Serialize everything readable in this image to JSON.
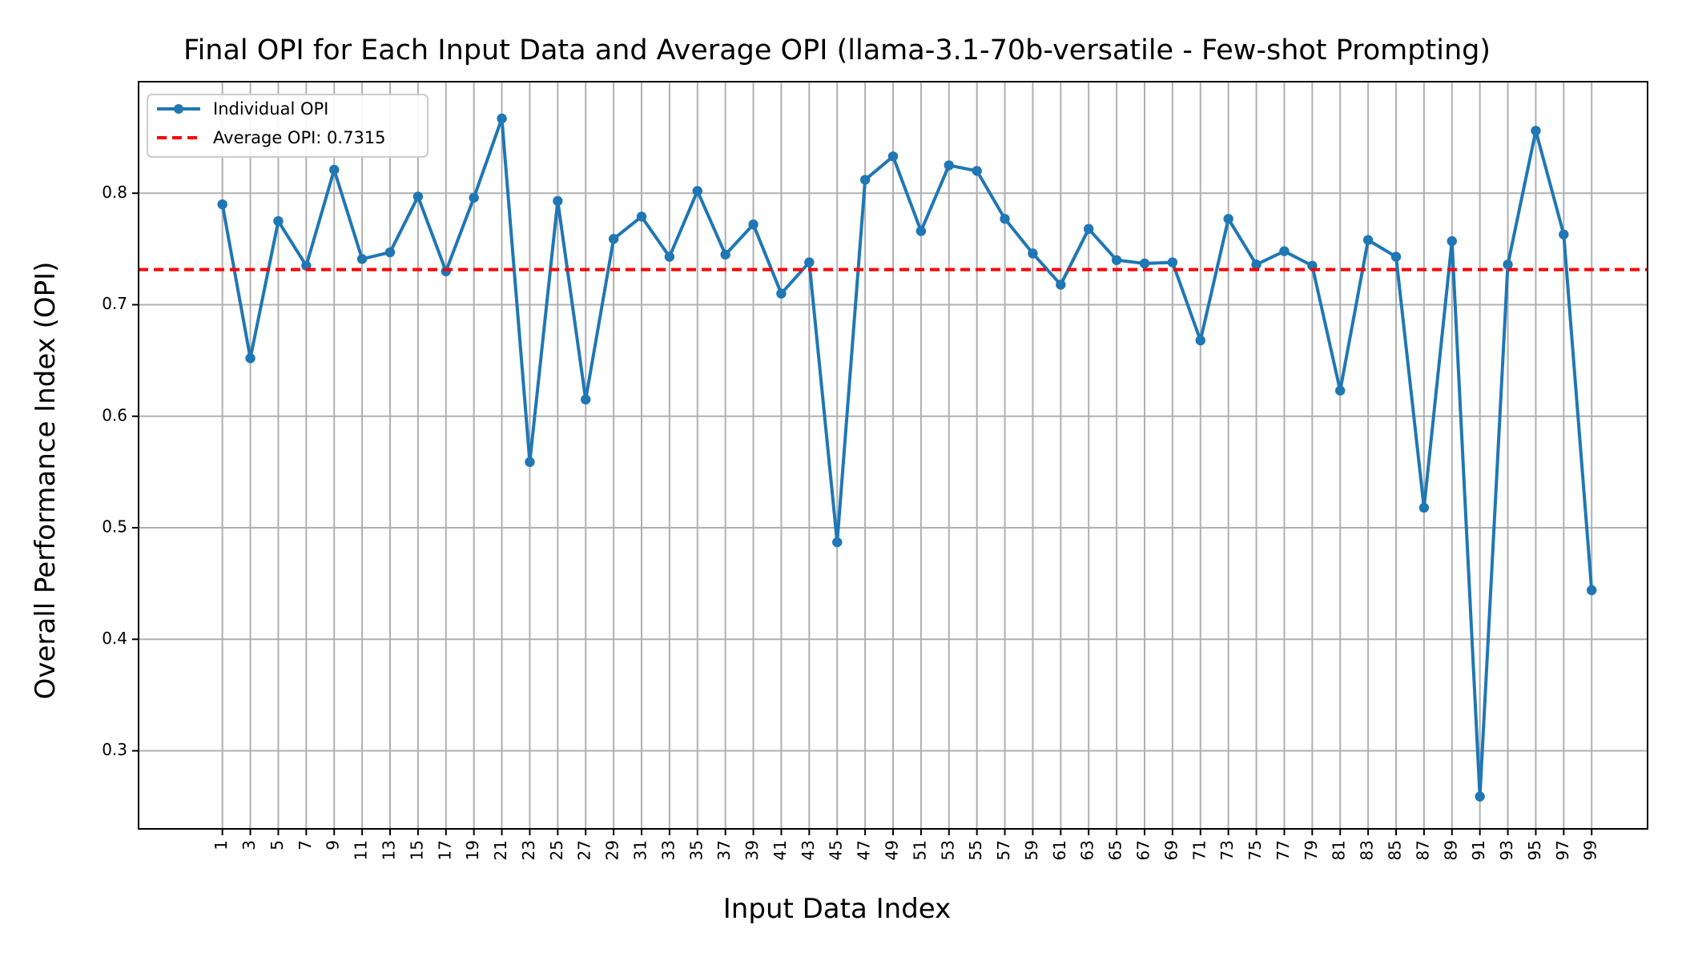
{
  "chart_data": {
    "type": "line",
    "title": "Final OPI for Each Input Data and Average OPI (llama-3.1-70b-versatile - Few-shot Prompting)",
    "xlabel": "Input Data Index",
    "ylabel": "Overall Performance Index (OPI)",
    "x": [
      1,
      3,
      5,
      7,
      9,
      11,
      13,
      15,
      17,
      19,
      21,
      23,
      25,
      27,
      29,
      31,
      33,
      35,
      37,
      39,
      41,
      43,
      45,
      47,
      49,
      51,
      53,
      55,
      57,
      59,
      61,
      63,
      65,
      67,
      69,
      71,
      73,
      75,
      77,
      79,
      81,
      83,
      85,
      87,
      89,
      91,
      93,
      95,
      97,
      99
    ],
    "x_ticks": [
      "1",
      "3",
      "5",
      "7",
      "9",
      "11",
      "13",
      "15",
      "17",
      "19",
      "21",
      "23",
      "25",
      "27",
      "29",
      "31",
      "33",
      "35",
      "37",
      "39",
      "41",
      "43",
      "45",
      "47",
      "49",
      "51",
      "53",
      "55",
      "57",
      "59",
      "61",
      "63",
      "65",
      "67",
      "69",
      "71",
      "73",
      "75",
      "77",
      "79",
      "81",
      "83",
      "85",
      "87",
      "89",
      "91",
      "93",
      "95",
      "97",
      "99"
    ],
    "xlim": [
      -5,
      103
    ],
    "ylim": [
      0.23,
      0.9
    ],
    "y_ticks": [
      0.3,
      0.4,
      0.5,
      0.6,
      0.7,
      0.8
    ],
    "y_tick_labels": [
      "0.3",
      "0.4",
      "0.5",
      "0.6",
      "0.7",
      "0.8"
    ],
    "grid": true,
    "legend_position": "top-left",
    "series": [
      {
        "name": "Individual OPI",
        "color": "#1f77b4",
        "values": [
          0.79,
          0.652,
          0.775,
          0.735,
          0.821,
          0.741,
          0.747,
          0.797,
          0.73,
          0.796,
          0.867,
          0.559,
          0.793,
          0.615,
          0.759,
          0.779,
          0.743,
          0.802,
          0.745,
          0.772,
          0.71,
          0.738,
          0.487,
          0.812,
          0.833,
          0.766,
          0.825,
          0.82,
          0.777,
          0.746,
          0.718,
          0.768,
          0.74,
          0.737,
          0.738,
          0.668,
          0.777,
          0.736,
          0.748,
          0.735,
          0.623,
          0.758,
          0.743,
          0.518,
          0.757,
          0.259,
          0.736,
          0.856,
          0.763,
          0.444
        ]
      }
    ],
    "reference_line": {
      "name": "Average OPI: 0.7315",
      "value": 0.7315,
      "color": "#ff0000"
    }
  }
}
